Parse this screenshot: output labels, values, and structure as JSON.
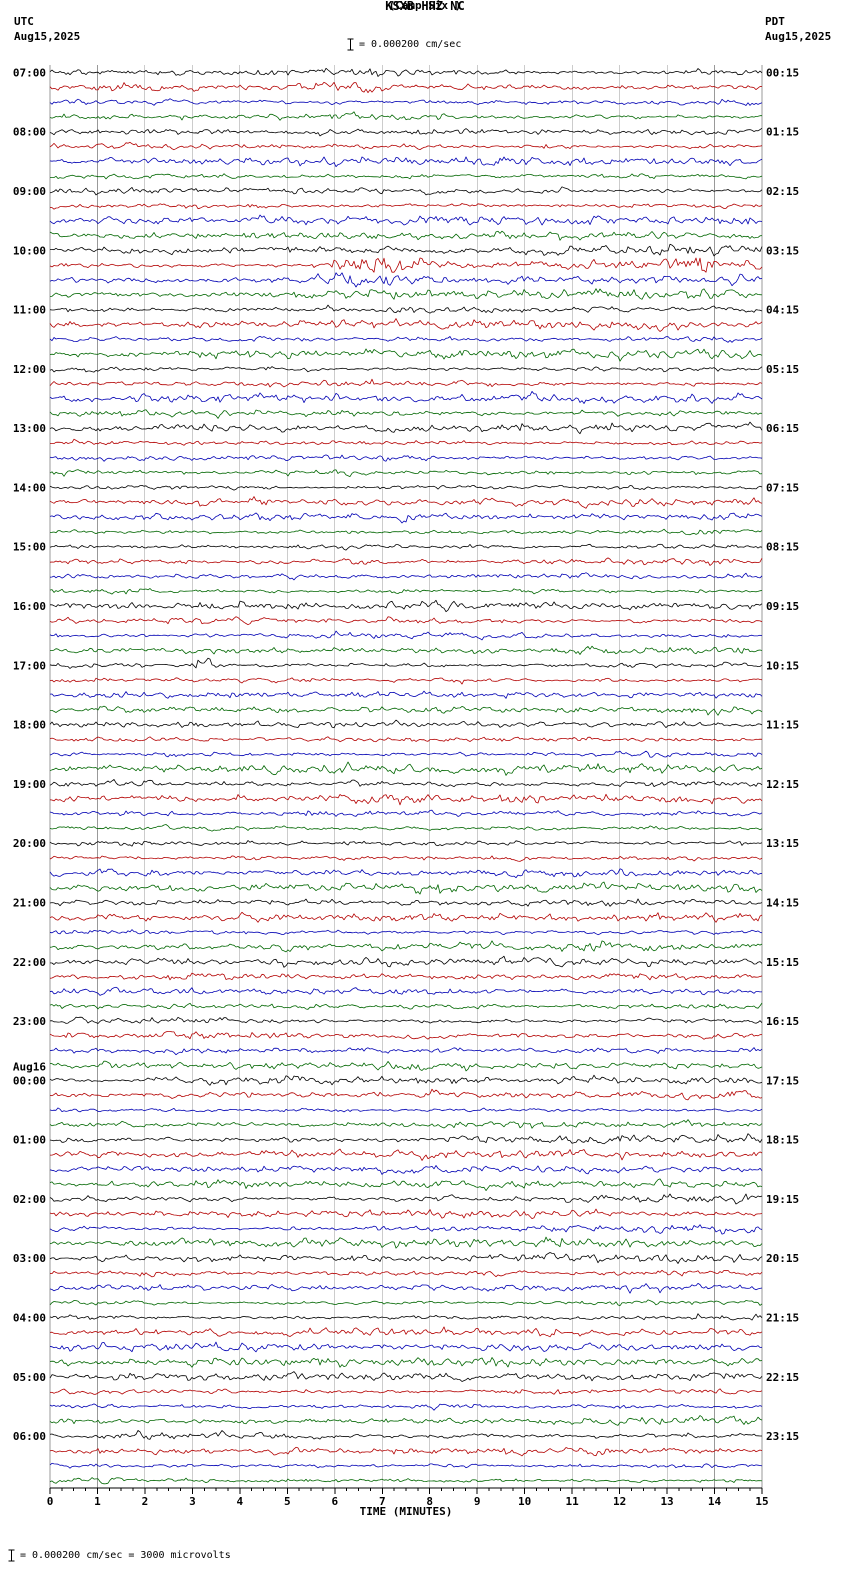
{
  "header": {
    "station": "KSXB HHZ NC",
    "location": "(Camp Six )",
    "scale_label": "= 0.000200 cm/sec",
    "left_tz": "UTC",
    "left_date": "Aug15,2025",
    "right_tz": "PDT",
    "right_date": "Aug15,2025"
  },
  "footer": {
    "text": "= 0.000200 cm/sec =    3000 microvolts"
  },
  "chart_data": {
    "type": "line",
    "subtype": "helicorder",
    "title": "KSXB HHZ NC (Camp Six )",
    "xlabel": "TIME (MINUTES)",
    "x_ticks": [
      "0",
      "1",
      "2",
      "3",
      "4",
      "5",
      "6",
      "7",
      "8",
      "9",
      "10",
      "11",
      "12",
      "13",
      "14",
      "15"
    ],
    "x_range_minutes": [
      0,
      15
    ],
    "hours": 24,
    "traces_per_hour": 4,
    "minutes_per_trace": 15,
    "trace_colors": [
      "#000000",
      "#b30000",
      "#0000b3",
      "#006600"
    ],
    "grid_color": "#999999",
    "axis_color": "#000000",
    "left_time_labels": [
      "07:00",
      "08:00",
      "09:00",
      "10:00",
      "11:00",
      "12:00",
      "13:00",
      "14:00",
      "15:00",
      "16:00",
      "17:00",
      "18:00",
      "19:00",
      "20:00",
      "21:00",
      "22:00",
      "23:00",
      "00:00",
      "01:00",
      "02:00",
      "03:00",
      "04:00",
      "05:00",
      "06:00"
    ],
    "right_time_labels": [
      "00:15",
      "01:15",
      "02:15",
      "03:15",
      "04:15",
      "05:15",
      "06:15",
      "07:15",
      "08:15",
      "09:15",
      "10:15",
      "11:15",
      "12:15",
      "13:15",
      "14:15",
      "15:15",
      "16:15",
      "17:15",
      "18:15",
      "19:15",
      "20:15",
      "21:15",
      "22:15",
      "23:15"
    ],
    "left_date_break": {
      "label": "Aug16",
      "row_index": 17
    },
    "events": [
      {
        "row": 1,
        "minute": 6.3,
        "width": 0.7,
        "amp": 2.0
      },
      {
        "row": 13,
        "minute": 6.9,
        "width": 0.9,
        "amp": 3.5
      },
      {
        "row": 13,
        "minute": 13.6,
        "width": 0.5,
        "amp": 2.0
      },
      {
        "row": 14,
        "minute": 6.6,
        "width": 0.9,
        "amp": 1.5,
        "offset": 4
      },
      {
        "row": 40,
        "minute": 3.2,
        "width": 0.25,
        "amp": 6.0
      },
      {
        "row": 90,
        "minute": 8.3,
        "width": 0.4,
        "amp": 2.0
      }
    ],
    "description": "24 hours of continuous seismic background noise; each row is a 15-minute segment, four rows per hour colored black/red/blue/green"
  }
}
